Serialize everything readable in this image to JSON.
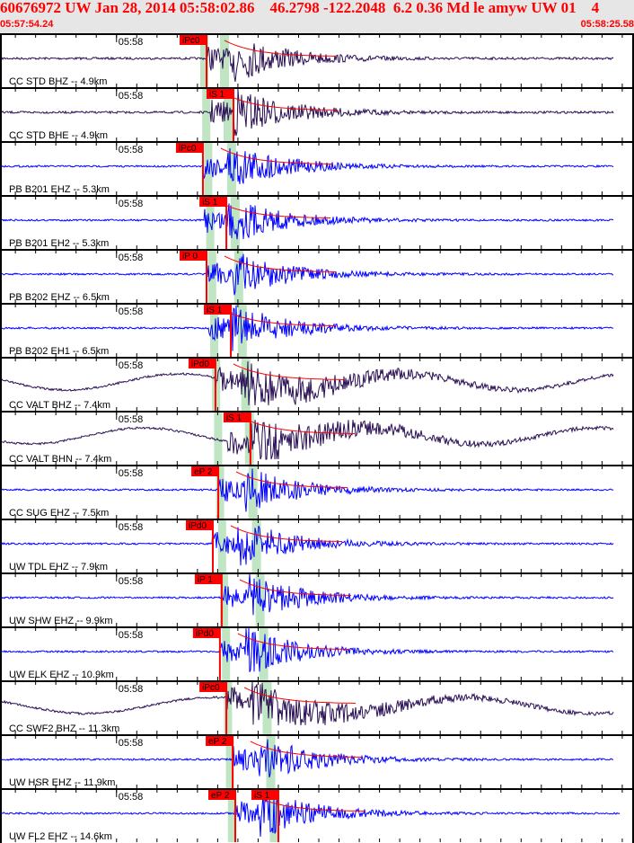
{
  "header": {
    "title": "60676972 UW Jan 28, 2014 05:58:02.86    46.2798 -122.2048  6.2 0.36 Md le amyw UW 01    4",
    "start_time": "05:57:54.24",
    "end_time": "05:58:25.58",
    "minute_tick_label": "05:58"
  },
  "colors": {
    "broadband": "#2a0f55",
    "short_period": "#0000ff",
    "pick": "#ff0000",
    "window": "#bfe5c3"
  },
  "rows": [
    {
      "label": "CC STD BHZ -- 4.9km",
      "type": "broadband",
      "picks": [
        {
          "label": "iPc0",
          "time": "05:58:04.45"
        }
      ]
    },
    {
      "label": "CC STD BHE -- 4.9km",
      "type": "broadband",
      "picks": [
        {
          "label": "iS 1",
          "time": "05:58:05.78"
        }
      ]
    },
    {
      "label": "PB B201 EHZ -- 5.3km",
      "type": "short_period",
      "picks": [
        {
          "label": "iPc0",
          "time": "05:58:04.27"
        }
      ]
    },
    {
      "label": "PB B201 EH2 -- 5.3km",
      "type": "short_period",
      "picks": [
        {
          "label": "iS 1",
          "time": "05:58:05.43"
        }
      ]
    },
    {
      "label": "PB B202 EHZ -- 6.5km",
      "type": "short_period",
      "picks": [
        {
          "label": "iP 0",
          "time": "05:58:04.45"
        }
      ]
    },
    {
      "label": "PB B202 EH1 -- 6.5km",
      "type": "short_period",
      "picks": [
        {
          "label": "iS 1",
          "time": "05:58:05.65"
        }
      ]
    },
    {
      "label": "CC VALT BHZ -- 7.4km",
      "type": "broadband",
      "picks": [
        {
          "label": "iPd0",
          "time": "05:58:04.89"
        }
      ]
    },
    {
      "label": "CC VALT BHN -- 7.4km",
      "type": "broadband",
      "picks": [
        {
          "label": "iS 1",
          "time": "05:58:06.62"
        }
      ]
    },
    {
      "label": "CC SUG EHZ -- 7.5km",
      "type": "short_period",
      "picks": [
        {
          "label": "eP 2",
          "time": "05:58:05.03"
        }
      ]
    },
    {
      "label": "UW TDL EHZ -- 7.9km",
      "type": "short_period",
      "picks": [
        {
          "label": "iPd0",
          "time": "05:58:04.76"
        }
      ]
    },
    {
      "label": "UW SHW EHZ -- 9.9km",
      "type": "short_period",
      "picks": [
        {
          "label": "iP 1",
          "time": "05:58:05.20"
        }
      ]
    },
    {
      "label": "UW ELK EHZ -- 10.9km",
      "type": "short_period",
      "picks": [
        {
          "label": "iPd0",
          "time": "05:58:05.11"
        }
      ]
    },
    {
      "label": "CC SWF2 BHZ -- 11.3km",
      "type": "broadband",
      "picks": [
        {
          "label": "iPc0",
          "time": "05:58:05.43"
        }
      ]
    },
    {
      "label": "UW HSR EHZ -- 11.9km",
      "type": "short_period",
      "picks": [
        {
          "label": "eP 2",
          "time": "05:58:05.74"
        }
      ]
    },
    {
      "label": "UW FL2 EHZ -- 14.6km",
      "type": "short_period",
      "picks": [
        {
          "label": "eP 2",
          "time": "05:58:05.87"
        },
        {
          "label": "iS 1",
          "time": "05:58:08.00"
        }
      ]
    }
  ]
}
